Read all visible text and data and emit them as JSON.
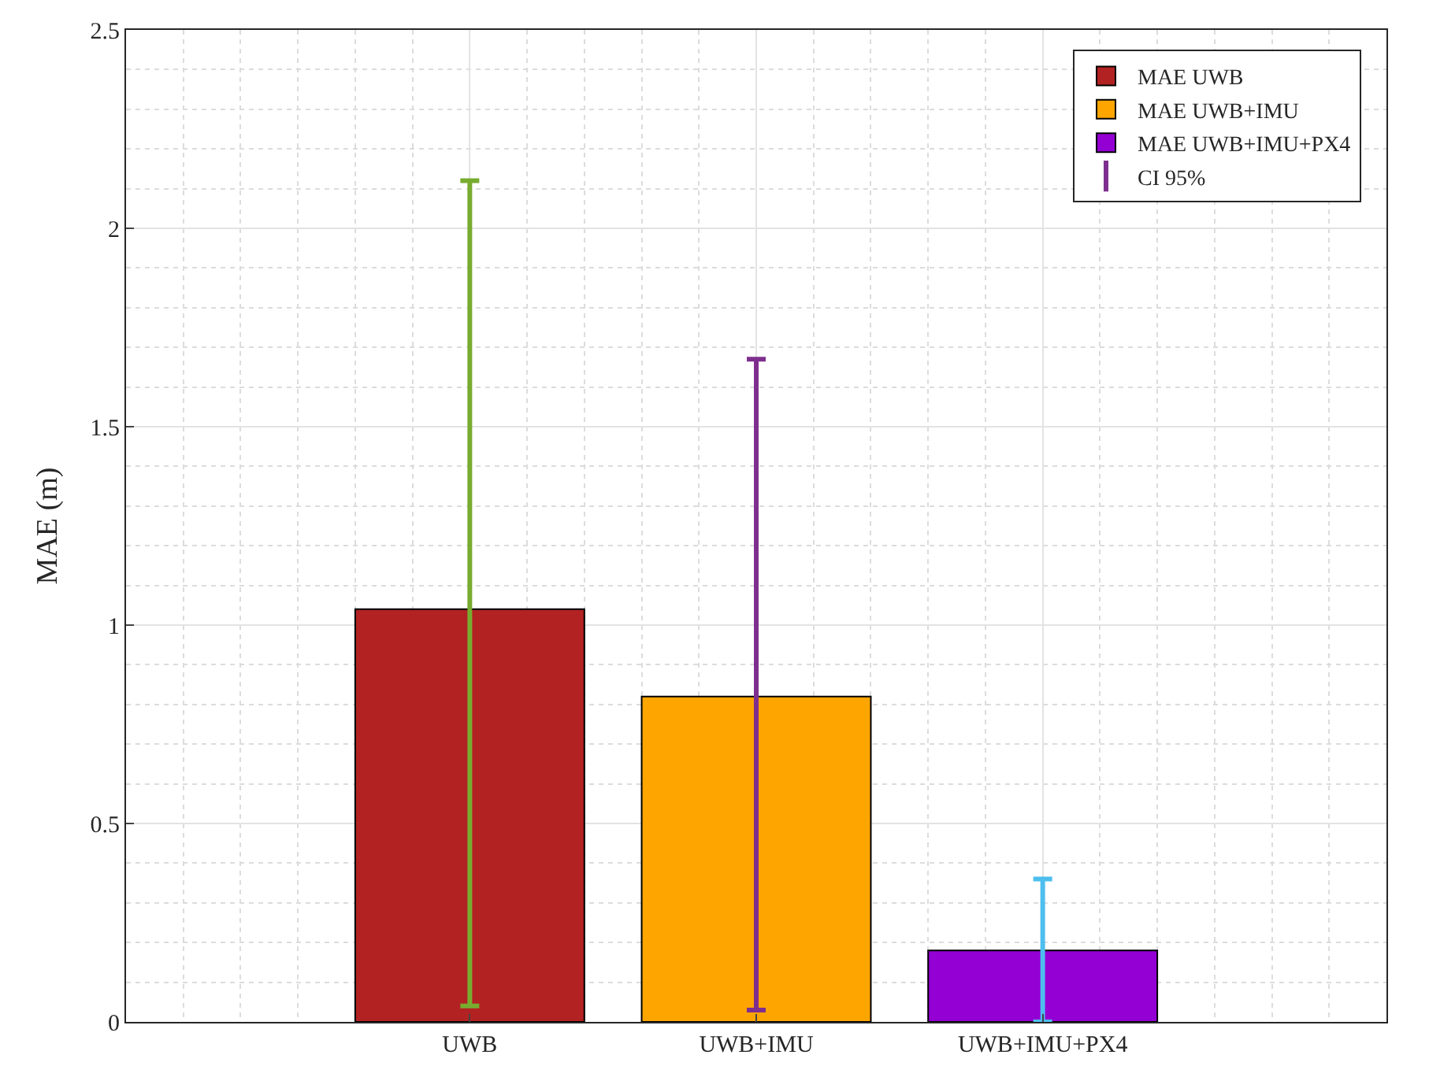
{
  "chart_data": {
    "type": "bar",
    "ylabel": "MAE (m)",
    "categories": [
      "UWB",
      "UWB+IMU",
      "UWB+IMU+PX4"
    ],
    "series": [
      {
        "name": "MAE UWB",
        "color": "#b22222",
        "values": [
          1.04,
          null,
          null
        ],
        "errors": [
          [
            0.04,
            2.12
          ],
          null,
          null
        ]
      },
      {
        "name": "MAE UWB+IMU",
        "color": "#ffa500",
        "values": [
          null,
          0.82,
          null
        ],
        "errors": [
          null,
          [
            0.03,
            1.67
          ],
          null
        ]
      },
      {
        "name": "MAE UWB+IMU+PX4",
        "color": "#9400d3",
        "values": [
          null,
          null,
          0.18
        ],
        "errors": [
          null,
          null,
          [
            0.0,
            0.36
          ]
        ]
      },
      {
        "name": "CI 95%",
        "type": "scatter",
        "color": "#7e2f8e",
        "values": [
          null,
          null,
          null
        ]
      }
    ],
    "ylim": [
      0,
      2.5
    ],
    "yticks": [
      0,
      0.5,
      1,
      1.5,
      2,
      2.5
    ],
    "grid": true,
    "legend": "top right"
  }
}
